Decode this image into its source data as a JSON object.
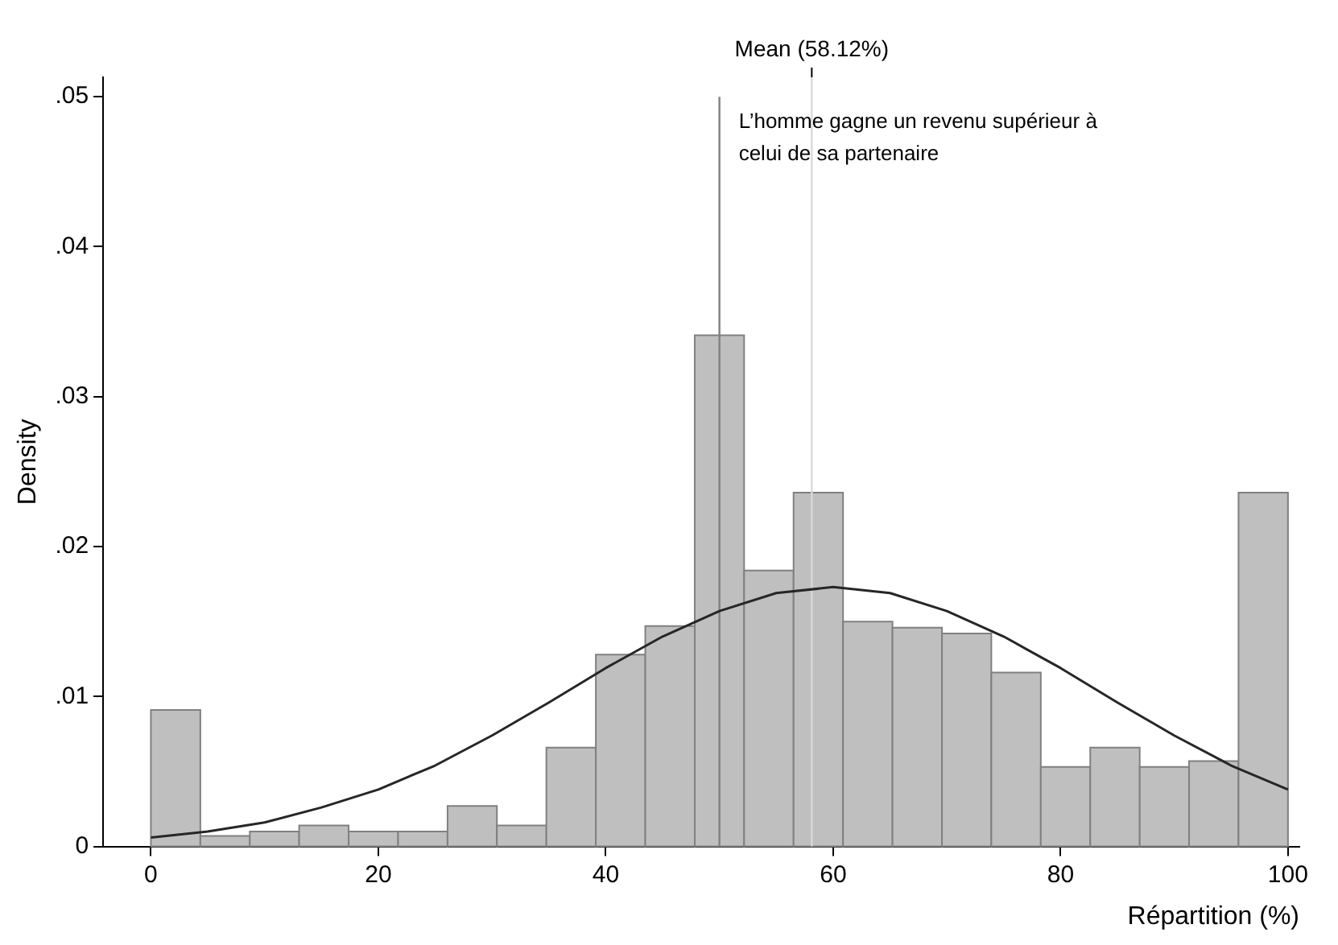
{
  "chart_data": {
    "type": "histogram",
    "xlabel": "Répartition (%)",
    "ylabel": "Density",
    "bins": [
      0,
      4.35,
      8.7,
      13.04,
      17.39,
      21.74,
      26.09,
      30.43,
      34.78,
      39.13,
      43.48,
      47.83,
      52.17,
      56.52,
      60.87,
      65.22,
      69.57,
      73.91,
      78.26,
      82.61,
      86.96,
      91.3,
      95.65,
      100
    ],
    "values": [
      0.0091,
      0.0007,
      0.001,
      0.0014,
      0.001,
      0.001,
      0.0027,
      0.0014,
      0.0066,
      0.0128,
      0.0147,
      0.0341,
      0.0184,
      0.0236,
      0.015,
      0.0146,
      0.0142,
      0.0116,
      0.0053,
      0.0066,
      0.0053,
      0.0057,
      0.0236
    ],
    "color": "#bfbfbf",
    "series": [
      {
        "type": "line",
        "color": "#262626",
        "x": [
          0,
          5,
          10,
          15,
          20,
          25,
          30,
          35,
          40,
          45,
          50,
          55,
          60,
          65,
          70,
          75,
          80,
          85,
          90,
          95,
          100
        ],
        "values": [
          0.0006,
          0.001,
          0.0016,
          0.0026,
          0.0038,
          0.0054,
          0.0074,
          0.0096,
          0.0119,
          0.014,
          0.0157,
          0.0169,
          0.0173,
          0.0169,
          0.0157,
          0.014,
          0.0119,
          0.0096,
          0.0074,
          0.0054,
          0.0038
        ]
      }
    ],
    "xlim": [
      -4.2,
      101
    ],
    "xticks": [
      0,
      20,
      40,
      60,
      80,
      100
    ],
    "ylim": [
      0,
      0.0513
    ],
    "yticks": [
      0,
      {
        "value": 0.01,
        "label": ".01"
      },
      {
        "value": 0.02,
        "label": ".02"
      },
      {
        "value": 0.03,
        "label": ".03"
      },
      {
        "value": 0.04,
        "label": ".04"
      },
      {
        "value": 0.05,
        "label": ".05"
      }
    ],
    "ref_lines": [
      {
        "axis": "x",
        "value": 50,
        "label": "L’homme gagne un revenu supérieur à celui de sa partenaire",
        "color": "#808080"
      },
      {
        "axis": "x",
        "value": 58.12,
        "label": "Mean (58.12%)",
        "color": "#d9d9d9"
      }
    ],
    "grid": false,
    "legend": false,
    "marker": "none"
  }
}
